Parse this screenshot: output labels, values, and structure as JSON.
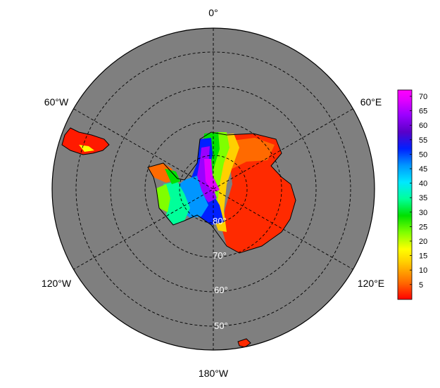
{
  "map": {
    "projection": "south-polar-stereographic",
    "ocean_color": "#7f7f7f",
    "gridline_style": "dashed",
    "longitude_labels": {
      "top": "0°",
      "upper_left": "60°W",
      "upper_right": "60°E",
      "lower_left": "120°W",
      "lower_right": "120°E",
      "bottom": "180°W"
    },
    "latitude_labels": [
      "80°",
      "70°",
      "60°",
      "50°"
    ]
  },
  "colorbar": {
    "ticks": [
      "70",
      "65",
      "60",
      "55",
      "50",
      "45",
      "40",
      "35",
      "30",
      "25",
      "20",
      "15",
      "10",
      "5"
    ],
    "colors": [
      "#ff0000",
      "#ff6a00",
      "#ffd000",
      "#ffff00",
      "#7fff00",
      "#00e000",
      "#00ff9a",
      "#00e8ff",
      "#0096ff",
      "#0020ff",
      "#5a00c8",
      "#9a00ff",
      "#e000ff",
      "#ff00ff"
    ]
  }
}
